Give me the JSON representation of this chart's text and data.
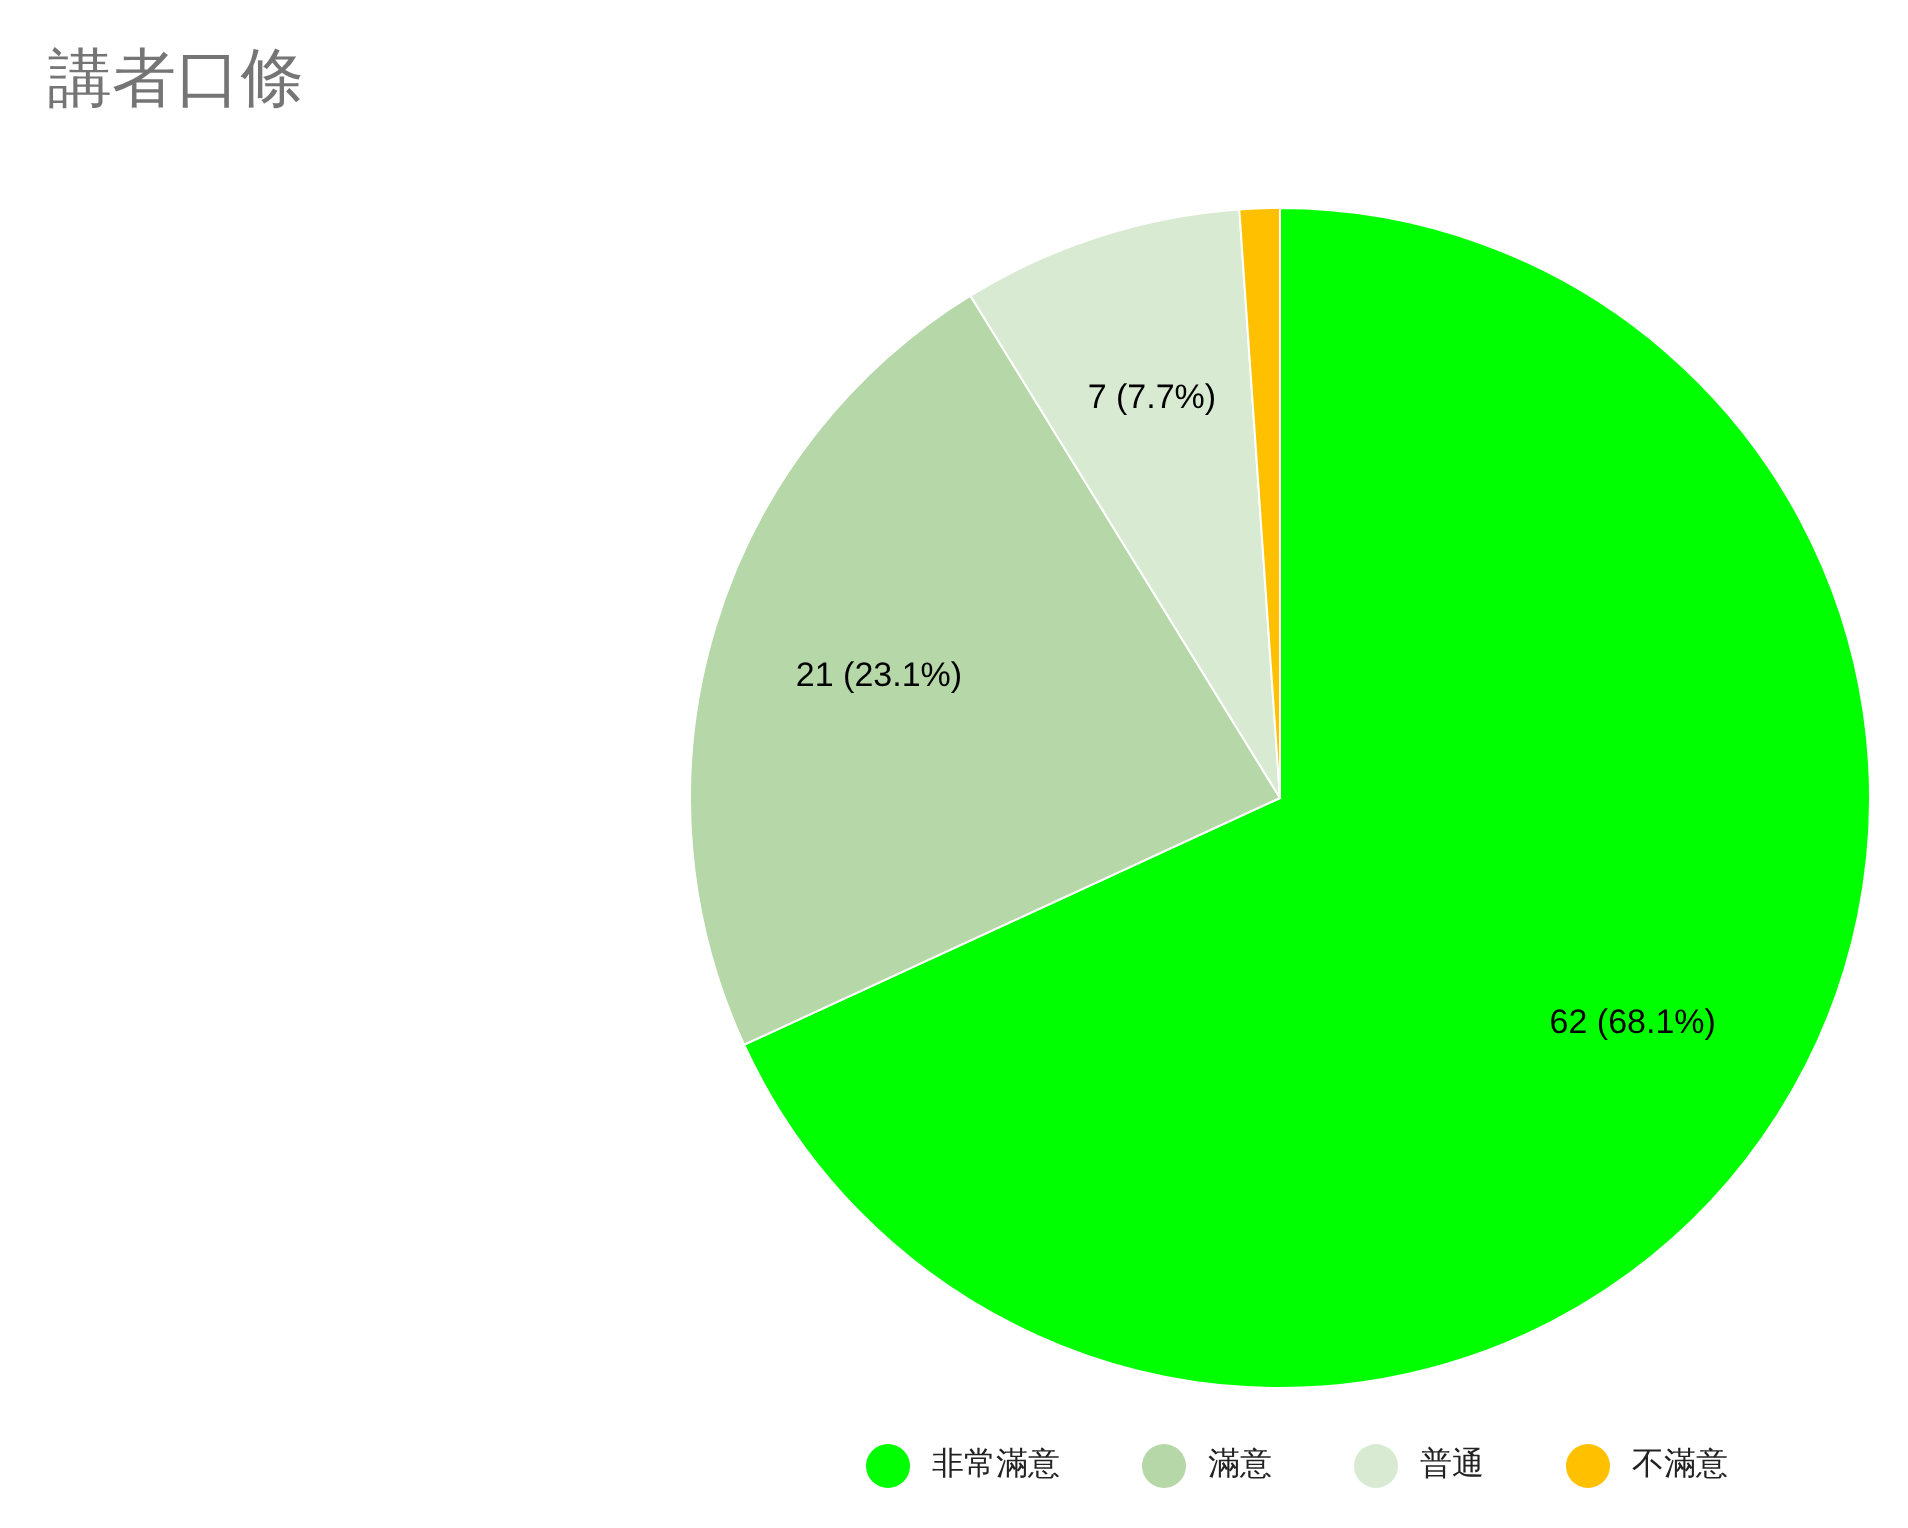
{
  "chart_data": {
    "type": "pie",
    "title": "講者口條",
    "categories": [
      "非常滿意",
      "滿意",
      "普通",
      "不滿意"
    ],
    "values": [
      62,
      21,
      7,
      1
    ],
    "colors": [
      "#00ff00",
      "#b6d7a8",
      "#d9ead3",
      "#ffc000"
    ],
    "value_labels": [
      "62 (68.1%)",
      "21 (23.1%)",
      "7 (7.7%)",
      null
    ],
    "legend": "bottom"
  }
}
